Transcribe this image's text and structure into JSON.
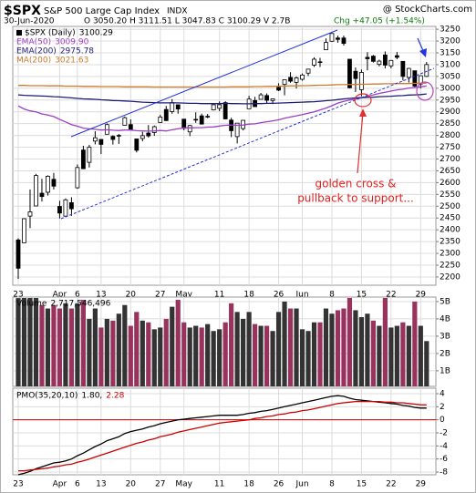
{
  "header": {
    "symbol": "$SPX",
    "name": "S&P 500 Large Cap Index",
    "exchange": "INDX",
    "source": "@ StockCharts.com",
    "date": "30-Jun-2020",
    "quote": "O 3050.20 H 3111.51 L 3047.83 C 3100.29 V 2.7B",
    "change": "Chg +47.05 (+1.54%)"
  },
  "chart_data": [
    {
      "type": "candlestick",
      "annotation": [
        "golden cross &",
        "pullback to support..."
      ],
      "categories": [
        "23",
        null,
        null,
        null,
        null,
        null,
        null,
        "Apr",
        null,
        null,
        "6",
        null,
        null,
        null,
        "13",
        null,
        null,
        null,
        null,
        "20",
        null,
        null,
        null,
        null,
        "27",
        null,
        null,
        null,
        "May",
        null,
        null,
        null,
        null,
        null,
        "11",
        null,
        null,
        null,
        null,
        "18",
        null,
        null,
        null,
        null,
        "26",
        null,
        null,
        null,
        "Jun",
        null,
        null,
        null,
        null,
        "8",
        null,
        null,
        null,
        null,
        "15",
        null,
        null,
        null,
        null,
        "22",
        null,
        null,
        null,
        null,
        "29",
        null
      ],
      "ylim": [
        2165,
        3262
      ],
      "yticks": [
        2200,
        2250,
        2300,
        2350,
        2400,
        2450,
        2500,
        2550,
        2600,
        2650,
        2700,
        2750,
        2800,
        2850,
        2900,
        2950,
        3000,
        3050,
        3100,
        3150,
        3200,
        3250
      ],
      "grid": true,
      "series": [
        {
          "name": "$SPX (Daily)",
          "last_label": "3100.29",
          "color": "#000000",
          "open": [
            2357,
            2345,
            2458,
            2501,
            2555,
            2559,
            2614,
            2499,
            2458,
            2515,
            2578,
            2738,
            2686,
            2776,
            2783,
            2805,
            2796,
            2799,
            2843,
            2846,
            2785,
            2787,
            2810,
            2812,
            2855,
            2910,
            2901,
            2930,
            2869,
            2815,
            2868,
            2883,
            2879,
            2908,
            2915,
            2939,
            2865,
            2795,
            2829,
            2913,
            2948,
            2953,
            2969,
            2948,
            3004,
            3016,
            3046,
            3025,
            3038,
            3064,
            3098,
            3112,
            3163,
            3199,
            3213,
            3213,
            3123,
            3072,
            2994,
            3131,
            3136,
            3101,
            3141,
            3095,
            3138,
            3114,
            3046,
            3074,
            3018,
            3050.2
          ],
          "high": [
            2364,
            2449,
            2571,
            2637,
            2616,
            2631,
            2641,
            2523,
            2533,
            2538,
            2677,
            2756,
            2760,
            2818,
            2783,
            2851,
            2801,
            2806,
            2880,
            2868,
            2785,
            2815,
            2844,
            2842,
            2887,
            2925,
            2954,
            2930,
            2869,
            2845,
            2898,
            2892,
            2891,
            2932,
            2944,
            2945,
            2875,
            2852,
            2865,
            2968,
            2964,
            2980,
            2978,
            2957,
            3021,
            3036,
            3068,
            3050,
            3063,
            3081,
            3131,
            3129,
            3211,
            3233,
            3223,
            3223,
            3123,
            3088,
            3079,
            3153,
            3141,
            3121,
            3156,
            3118,
            3154,
            3115,
            3086,
            3074,
            3054,
            3111.51
          ],
          "low": [
            2192,
            2345,
            2407,
            2500,
            2520,
            2545,
            2571,
            2448,
            2455,
            2459,
            2574,
            2657,
            2664,
            2762,
            2721,
            2805,
            2761,
            2764,
            2842,
            2821,
            2728,
            2775,
            2791,
            2798,
            2853,
            2861,
            2892,
            2892,
            2822,
            2797,
            2853,
            2847,
            2873,
            2906,
            2903,
            2869,
            2793,
            2766,
            2821,
            2913,
            2922,
            2953,
            2938,
            2933,
            2988,
            2970,
            3023,
            2999,
            3032,
            3052,
            3090,
            3090,
            3163,
            3197,
            3193,
            3181,
            2999,
            2984,
            2966,
            3076,
            3109,
            3093,
            3084,
            3084,
            3123,
            3033,
            3024,
            3005,
            2999,
            3047.83
          ],
          "close": [
            2237,
            2447,
            2476,
            2630,
            2541,
            2627,
            2585,
            2471,
            2527,
            2489,
            2664,
            2659,
            2750,
            2790,
            2762,
            2846,
            2783,
            2800,
            2875,
            2823,
            2737,
            2799,
            2798,
            2837,
            2878,
            2863,
            2939,
            2912,
            2830,
            2842,
            2868,
            2848,
            2881,
            2930,
            2930,
            2870,
            2820,
            2852,
            2864,
            2954,
            2922,
            2972,
            2949,
            2955,
            2992,
            3036,
            3030,
            3044,
            3056,
            3081,
            3123,
            3112,
            3194,
            3232,
            3207,
            3190,
            3002,
            3041,
            3067,
            3125,
            3114,
            3115,
            3098,
            3118,
            3131,
            3050,
            3084,
            3009,
            3053,
            3100.29
          ]
        },
        {
          "name": "EMA(50)",
          "last_label": "3009.90",
          "color": "#9c3fc4",
          "values": [
            2925,
            2912,
            2904,
            2900,
            2891,
            2886,
            2880,
            2868,
            2857,
            2846,
            2839,
            2831,
            2828,
            2826,
            2823,
            2824,
            2822,
            2821,
            2823,
            2823,
            2820,
            2819,
            2818,
            2819,
            2821,
            2819,
            2824,
            2828,
            2832,
            2832,
            2833,
            2833,
            2835,
            2836,
            2840,
            2843,
            2844,
            2843,
            2844,
            2848,
            2849,
            2854,
            2858,
            2862,
            2866,
            2873,
            2878,
            2883,
            2888,
            2894,
            2900,
            2908,
            2916,
            2926,
            2937,
            2944,
            2950,
            2954,
            2960,
            2966,
            2972,
            2978,
            2983,
            2988,
            2993,
            2996,
            3001,
            3003,
            3006,
            3009.9
          ]
        },
        {
          "name": "EMA(200)",
          "last_label": "2975.78",
          "color": "#1c1c78",
          "values": [
            2972,
            2970,
            2969,
            2968,
            2967,
            2966,
            2964,
            2963,
            2961,
            2959,
            2957,
            2955,
            2954,
            2953,
            2951,
            2950,
            2948,
            2947,
            2946,
            2945,
            2943,
            2941,
            2940,
            2939,
            2938,
            2938,
            2938,
            2938,
            2937,
            2936,
            2936,
            2935,
            2935,
            2935,
            2935,
            2936,
            2935,
            2935,
            2934,
            2934,
            2935,
            2935,
            2936,
            2936,
            2937,
            2938,
            2939,
            2940,
            2941,
            2942,
            2943,
            2945,
            2947,
            2949,
            2952,
            2955,
            2957,
            2959,
            2960,
            2961,
            2962,
            2964,
            2965,
            2966,
            2968,
            2969,
            2971,
            2972,
            2973,
            2975.78
          ]
        },
        {
          "name": "MA(200)",
          "last_label": "3021.63",
          "color": "#d07a2a",
          "values": [
            3012,
            3012,
            3011,
            3011,
            3011,
            3010,
            3010,
            3010,
            3009,
            3009,
            3009,
            3008,
            3008,
            3008,
            3007,
            3007,
            3007,
            3007,
            3006,
            3006,
            3006,
            3006,
            3006,
            3005,
            3005,
            3005,
            3005,
            3005,
            3005,
            3005,
            3005,
            3005,
            3005,
            3005,
            3005,
            3005,
            3006,
            3006,
            3006,
            3006,
            3007,
            3007,
            3008,
            3008,
            3009,
            3009,
            3010,
            3010,
            3011,
            3011,
            3012,
            3013,
            3013,
            3014,
            3015,
            3015,
            3016,
            3016,
            3017,
            3017,
            3018,
            3018,
            3019,
            3019,
            3020,
            3020,
            3020,
            3021,
            3021,
            3021.63
          ]
        }
      ]
    },
    {
      "type": "bar",
      "ylim": [
        100000000,
        5260000000
      ],
      "yticks": [
        {
          "value": 1000000000,
          "label": "1B"
        },
        {
          "value": 2000000000,
          "label": "2B"
        },
        {
          "value": 3000000000,
          "label": "3B"
        },
        {
          "value": 4000000000,
          "label": "4B"
        },
        {
          "value": 5000000000,
          "label": "5B"
        }
      ],
      "grid": true,
      "series": [
        {
          "name": "Volume",
          "last_label": "2,717,546,496",
          "up_color": "#333333",
          "down_color": "#99335e",
          "values": [
            5200000000.0,
            5500000000.0,
            5600000000.0,
            5500000000.0,
            4800000000.0,
            4600000000.0,
            4800000000.0,
            4600000000.0,
            4900000000.0,
            4600000000.0,
            4900000000.0,
            5100000000.0,
            4000000000.0,
            4600000000.0,
            3500000000.0,
            4000000000.0,
            3900000000.0,
            4300000000.0,
            4800000000.0,
            3600000000.0,
            4400000000.0,
            3900000000.0,
            3800000000.0,
            3400000000.0,
            3500000000.0,
            4000000000.0,
            4700000000.0,
            5100000000.0,
            3800000000.0,
            3500000000.0,
            3600000000.0,
            3500000000.0,
            3700000000.0,
            3300000000.0,
            3400000000.0,
            3800000000.0,
            4900000000.0,
            4400000000.0,
            4000000000.0,
            4400000000.0,
            3700000000.0,
            3600000000.0,
            3600000000.0,
            3300000000.0,
            4400000000.0,
            5000000000.0,
            4600000000.0,
            4600000000.0,
            3400000000.0,
            3300000000.0,
            3800000000.0,
            3800000000.0,
            4600000000.0,
            4300000000.0,
            4500000000.0,
            4600000000.0,
            5400000000.0,
            4500000000.0,
            4100000000.0,
            4300000000.0,
            3900000000.0,
            3600000000.0,
            5500000000.0,
            3500000000.0,
            3600000000.0,
            3800000000.0,
            3600000000.0,
            5000000000.0,
            3600000000.0,
            2717546496
          ]
        }
      ]
    },
    {
      "type": "line",
      "categories": [
        "23",
        null,
        null,
        null,
        null,
        null,
        null,
        "Apr",
        null,
        null,
        "6",
        null,
        null,
        null,
        "13",
        null,
        null,
        null,
        null,
        "20",
        null,
        null,
        null,
        null,
        "27",
        null,
        null,
        null,
        "May",
        null,
        null,
        null,
        null,
        null,
        "11",
        null,
        null,
        null,
        null,
        "18",
        null,
        null,
        null,
        null,
        "26",
        null,
        null,
        null,
        "Jun",
        null,
        null,
        null,
        null,
        "8",
        null,
        null,
        null,
        null,
        "15",
        null,
        null,
        null,
        null,
        "22",
        null,
        null,
        null,
        null,
        "29",
        null
      ],
      "ylim": [
        -8.42,
        4.84
      ],
      "yticks": [
        -8,
        -6,
        -4,
        -2,
        0,
        2,
        4
      ],
      "grid": true,
      "reference_line": {
        "value": 0,
        "color": "#cc0000"
      },
      "series": [
        {
          "name": "PMO(35,20,10)",
          "last_label": "1.80,",
          "color": "#000000",
          "values": [
            -8.4,
            -8.2,
            -7.9,
            -7.5,
            -7.2,
            -6.9,
            -6.6,
            -6.5,
            -6.3,
            -6.0,
            -5.5,
            -5.1,
            -4.6,
            -4.1,
            -3.7,
            -3.2,
            -2.9,
            -2.6,
            -2.1,
            -1.8,
            -1.6,
            -1.4,
            -1.1,
            -0.9,
            -0.6,
            -0.4,
            -0.2,
            0.0,
            0.1,
            0.2,
            0.3,
            0.4,
            0.5,
            0.6,
            0.7,
            0.7,
            0.7,
            0.7,
            0.8,
            1.0,
            1.1,
            1.3,
            1.4,
            1.6,
            1.8,
            2.0,
            2.2,
            2.4,
            2.6,
            2.8,
            3.0,
            3.2,
            3.4,
            3.6,
            3.7,
            3.6,
            3.3,
            3.1,
            3.0,
            2.9,
            2.8,
            2.7,
            2.6,
            2.5,
            2.4,
            2.2,
            2.1,
            1.9,
            1.8,
            1.8
          ]
        },
        {
          "last_label": "2.28",
          "color": "#cc0000",
          "values": [
            -7.8,
            -7.8,
            -7.7,
            -7.6,
            -7.5,
            -7.4,
            -7.2,
            -7.1,
            -6.9,
            -6.8,
            -6.5,
            -6.3,
            -6.0,
            -5.7,
            -5.4,
            -5.1,
            -4.8,
            -4.5,
            -4.2,
            -3.9,
            -3.6,
            -3.4,
            -3.1,
            -2.9,
            -2.6,
            -2.4,
            -2.2,
            -1.9,
            -1.7,
            -1.5,
            -1.3,
            -1.1,
            -0.9,
            -0.7,
            -0.5,
            -0.4,
            -0.3,
            -0.2,
            -0.1,
            0.0,
            0.2,
            0.3,
            0.5,
            0.6,
            0.8,
            0.9,
            1.1,
            1.2,
            1.4,
            1.5,
            1.7,
            1.9,
            2.1,
            2.3,
            2.5,
            2.6,
            2.7,
            2.8,
            2.8,
            2.8,
            2.8,
            2.8,
            2.7,
            2.7,
            2.6,
            2.6,
            2.5,
            2.4,
            2.3,
            2.28
          ]
        }
      ]
    }
  ]
}
